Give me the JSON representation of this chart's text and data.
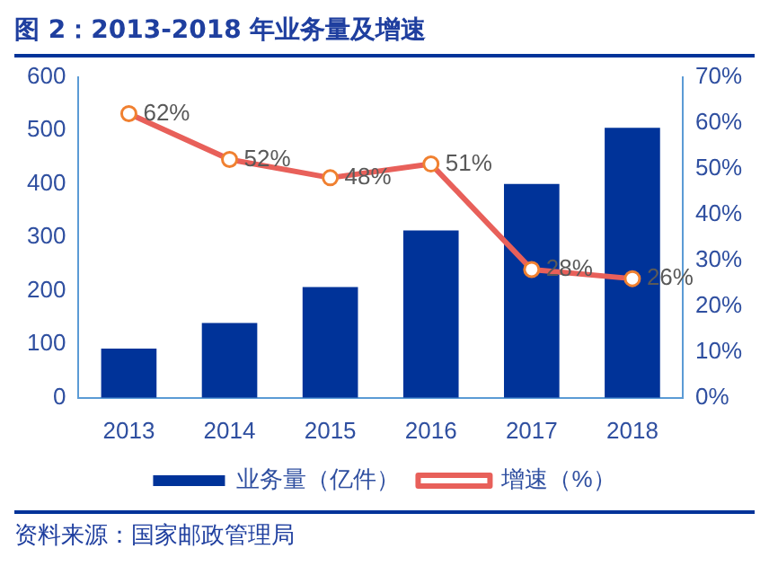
{
  "chart_data": {
    "type": "bar",
    "title": "图 2：2013-2018 年业务量及增速",
    "categories": [
      "2013",
      "2014",
      "2015",
      "2016",
      "2017",
      "2018"
    ],
    "series": [
      {
        "name": "业务量（亿件）",
        "color": "#003399",
        "values": [
          92,
          140,
          207,
          313,
          400,
          505
        ]
      },
      {
        "name": "增速（%）",
        "type": "line",
        "axis": "y2",
        "color": "#e8605a",
        "marker": "circle",
        "values": [
          62,
          52,
          48,
          51,
          28,
          26
        ],
        "value_labels": [
          "62%",
          "52%",
          "48%",
          "51%",
          "28%",
          "26%"
        ]
      }
    ],
    "ylim": [
      0,
      600
    ],
    "yticks": [
      0,
      100,
      200,
      300,
      400,
      500,
      600
    ],
    "y2lim": [
      0,
      70
    ],
    "y2ticks": [
      {
        "value": 0,
        "label": "0%"
      },
      {
        "value": 10,
        "label": "10%"
      },
      {
        "value": 20,
        "label": "20%"
      },
      {
        "value": 30,
        "label": "30%"
      },
      {
        "value": 40,
        "label": "40%"
      },
      {
        "value": 50,
        "label": "50%"
      },
      {
        "value": 60,
        "label": "60%"
      },
      {
        "value": 70,
        "label": "70%"
      }
    ],
    "grid": false,
    "legend": "bottom",
    "annotations": [
      "资料来源：国家邮政管理局"
    ]
  }
}
